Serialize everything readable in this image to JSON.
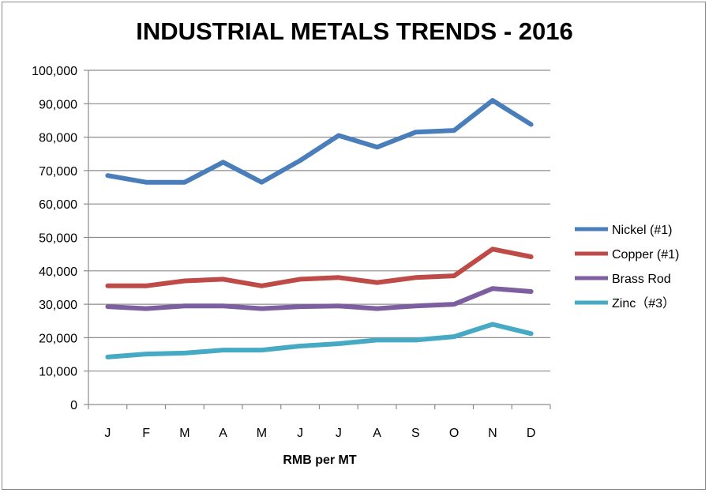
{
  "chart_data": {
    "type": "line",
    "title": "INDUSTRIAL METALS TRENDS - 2016",
    "xlabel": "RMB per MT",
    "ylabel": "",
    "categories": [
      "J",
      "F",
      "M",
      "A",
      "M",
      "J",
      "J",
      "A",
      "S",
      "O",
      "N",
      "D"
    ],
    "ylim": [
      0,
      100000
    ],
    "yticks": [
      0,
      10000,
      20000,
      30000,
      40000,
      50000,
      60000,
      70000,
      80000,
      90000,
      100000
    ],
    "ytick_labels": [
      "0",
      "10,000",
      "20,000",
      "30,000",
      "40,000",
      "50,000",
      "60,000",
      "70,000",
      "80,000",
      "90,000",
      "100,000"
    ],
    "grid": true,
    "legend_position": "right",
    "series": [
      {
        "name": "Nickel (#1)",
        "color": "#4a7ebb",
        "values": [
          68500,
          66500,
          66500,
          72500,
          66500,
          73000,
          80500,
          77000,
          81500,
          82000,
          91000,
          83800
        ]
      },
      {
        "name": "Copper (#1)",
        "color": "#be4b48",
        "values": [
          35500,
          35500,
          37000,
          37500,
          35500,
          37500,
          38000,
          36500,
          38000,
          38500,
          46500,
          44200
        ]
      },
      {
        "name": "Brass Rod",
        "color": "#7d5fa0",
        "values": [
          29300,
          28700,
          29500,
          29500,
          28700,
          29300,
          29500,
          28700,
          29500,
          30000,
          34700,
          33800
        ]
      },
      {
        "name": "Zinc（#3）",
        "color": "#46aac5",
        "values": [
          14200,
          15100,
          15400,
          16300,
          16300,
          17500,
          18200,
          19300,
          19300,
          20300,
          24000,
          21200
        ]
      }
    ]
  }
}
